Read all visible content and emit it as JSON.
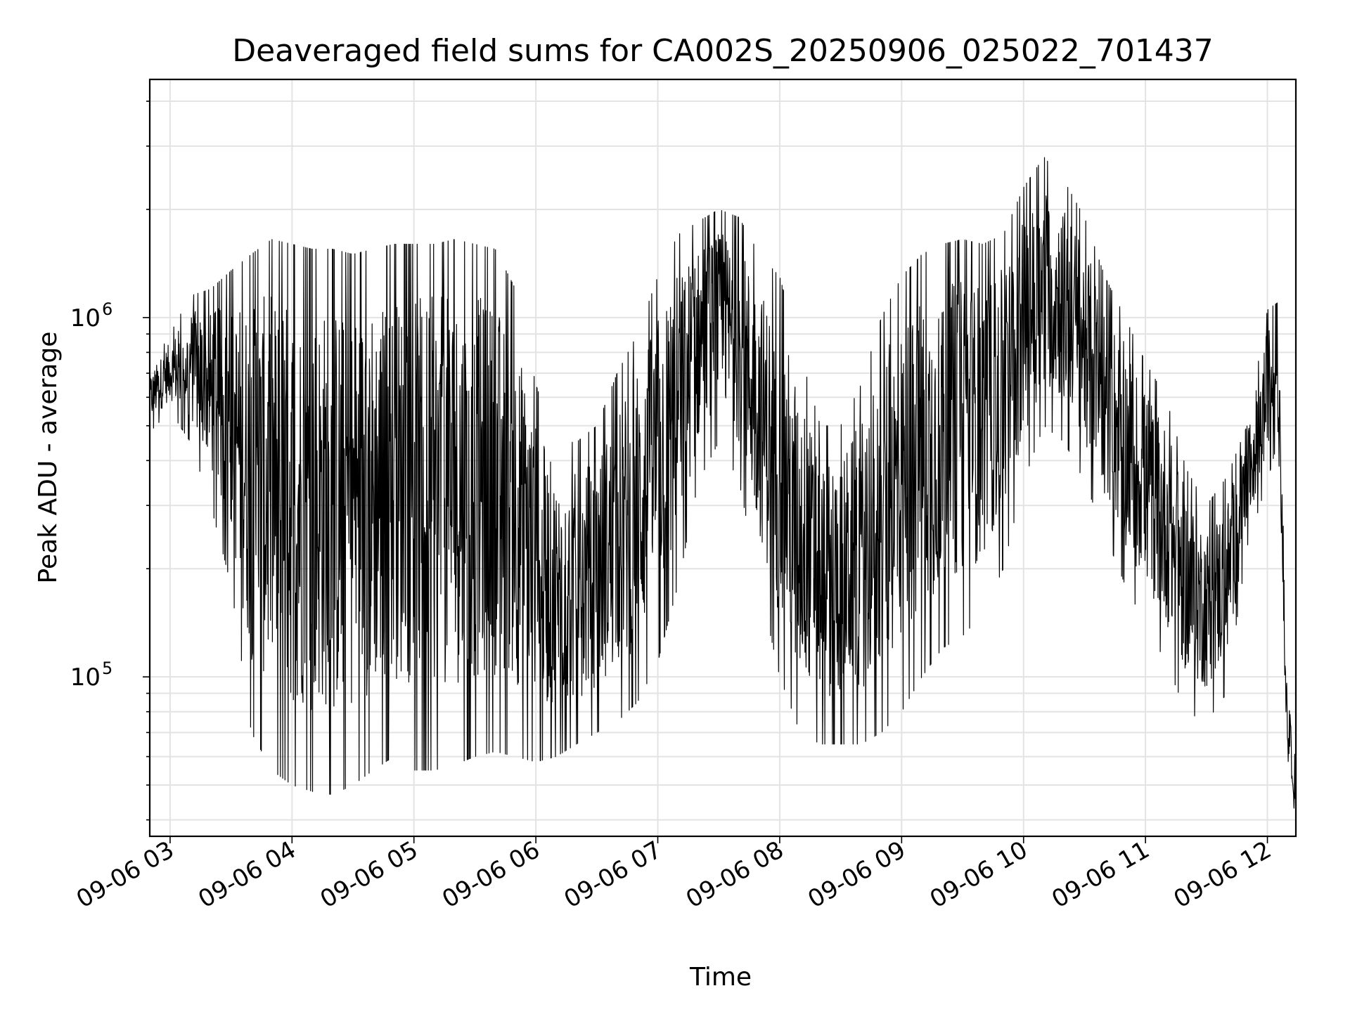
{
  "chart_data": {
    "type": "line",
    "title": "Deaveraged field sums for CA002S_20250906_025022_701437",
    "xlabel": "Time",
    "ylabel": "Peak ADU - average",
    "y_scale": "log",
    "ylim": [
      36000,
      4600000
    ],
    "xlim": [
      "2025-09-06 02:50",
      "2025-09-06 12:14"
    ],
    "x_ticks": [
      "09-06 03",
      "09-06 04",
      "09-06 05",
      "09-06 06",
      "09-06 07",
      "09-06 08",
      "09-06 09",
      "09-06 10",
      "09-06 11",
      "09-06 12"
    ],
    "y_ticks": [
      {
        "base": "10",
        "exp": "5",
        "value": 100000
      },
      {
        "base": "10",
        "exp": "6",
        "value": 1000000
      }
    ],
    "grid": true,
    "line_color": "#000000",
    "series": [
      {
        "name": "",
        "x": [
          "2025-09-06 02:50",
          "2025-09-06 03:00",
          "2025-09-06 03:10",
          "2025-09-06 03:20",
          "2025-09-06 03:30",
          "2025-09-06 03:40",
          "2025-09-06 03:50",
          "2025-09-06 04:00",
          "2025-09-06 04:10",
          "2025-09-06 04:20",
          "2025-09-06 04:30",
          "2025-09-06 04:40",
          "2025-09-06 04:50",
          "2025-09-06 05:00",
          "2025-09-06 05:10",
          "2025-09-06 05:20",
          "2025-09-06 05:30",
          "2025-09-06 05:40",
          "2025-09-06 05:50",
          "2025-09-06 06:00",
          "2025-09-06 06:10",
          "2025-09-06 06:20",
          "2025-09-06 06:30",
          "2025-09-06 06:40",
          "2025-09-06 06:50",
          "2025-09-06 07:00",
          "2025-09-06 07:10",
          "2025-09-06 07:20",
          "2025-09-06 07:30",
          "2025-09-06 07:40",
          "2025-09-06 07:50",
          "2025-09-06 08:00",
          "2025-09-06 08:10",
          "2025-09-06 08:20",
          "2025-09-06 08:30",
          "2025-09-06 08:40",
          "2025-09-06 08:50",
          "2025-09-06 09:00",
          "2025-09-06 09:10",
          "2025-09-06 09:20",
          "2025-09-06 09:30",
          "2025-09-06 09:40",
          "2025-09-06 09:50",
          "2025-09-06 10:00",
          "2025-09-06 10:10",
          "2025-09-06 10:20",
          "2025-09-06 10:30",
          "2025-09-06 10:40",
          "2025-09-06 10:50",
          "2025-09-06 11:00",
          "2025-09-06 11:10",
          "2025-09-06 11:20",
          "2025-09-06 11:30",
          "2025-09-06 11:40",
          "2025-09-06 11:50",
          "2025-09-06 12:00",
          "2025-09-06 12:05",
          "2025-09-06 12:10",
          "2025-09-06 12:14"
        ],
        "y_min": [
          480000,
          550000,
          450000,
          300000,
          180000,
          70000,
          55000,
          50000,
          48000,
          47000,
          50000,
          55000,
          60000,
          55000,
          55000,
          57000,
          60000,
          62000,
          60000,
          58000,
          60000,
          65000,
          70000,
          75000,
          85000,
          110000,
          180000,
          350000,
          450000,
          350000,
          180000,
          100000,
          70000,
          65000,
          65000,
          65000,
          70000,
          80000,
          100000,
          120000,
          130000,
          150000,
          200000,
          350000,
          500000,
          450000,
          350000,
          250000,
          180000,
          140000,
          110000,
          80000,
          75000,
          90000,
          230000,
          350000,
          450000,
          55000,
          40000
        ],
        "y_max": [
          720000,
          900000,
          1150000,
          1200000,
          1350000,
          1500000,
          1650000,
          1600000,
          1550000,
          1550000,
          1500000,
          1550000,
          1600000,
          1600000,
          1600000,
          1650000,
          1600000,
          1550000,
          1200000,
          650000,
          450000,
          450000,
          500000,
          700000,
          900000,
          1300000,
          1700000,
          1850000,
          2000000,
          1900000,
          1500000,
          1300000,
          800000,
          500000,
          500000,
          650000,
          1000000,
          1300000,
          1500000,
          1600000,
          1650000,
          1600000,
          1700000,
          2300000,
          2800000,
          2400000,
          1900000,
          1300000,
          1000000,
          750000,
          600000,
          380000,
          300000,
          360000,
          500000,
          1050000,
          1100000,
          85000,
          65000
        ]
      }
    ]
  }
}
